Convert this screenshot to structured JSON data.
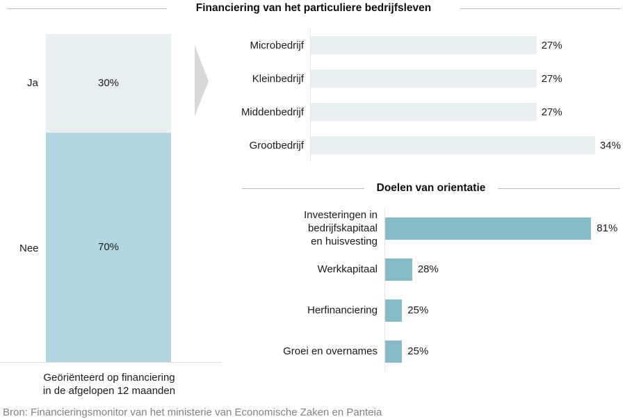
{
  "title": "Financiering van het particuliere bedrijfsleven",
  "source_note": "Bron: Financieringsmonitor van het ministerie van Economische Zaken en Panteia",
  "colors": {
    "light-bar": "#e7eff1",
    "blue-bar": "#b1d8e0",
    "teal-bar": "#84bbc6",
    "arrow": "#d8d8d8",
    "rule": "#bdbdbd",
    "axis": "#e5e5e5",
    "axis-strong": "#dcdcdc",
    "source-text": "#818181"
  },
  "chart_data": [
    {
      "type": "bar",
      "variant": "stacked-column",
      "categories": [
        "Ja",
        "Nee"
      ],
      "values": [
        30,
        70
      ],
      "value_labels": [
        "30%",
        "70%"
      ],
      "ylim": [
        0,
        100
      ],
      "caption_lines": [
        "Geöriënteerd op financiering",
        "in de afgelopen 12 maanden"
      ]
    },
    {
      "type": "bar",
      "variant": "horizontal",
      "categories": [
        "Microbedrijf",
        "Kleinbedrijf",
        "Middenbedrijf",
        "Grootbedrijf"
      ],
      "values": [
        27,
        27,
        27,
        34
      ],
      "value_labels": [
        "27%",
        "27%",
        "27%",
        "34%"
      ],
      "xlim": [
        0,
        37
      ]
    },
    {
      "type": "bar",
      "variant": "horizontal",
      "title": "Doelen van orientatie",
      "categories": [
        "Investeringen in bedrijfskapitaal en huisvesting",
        "Werkkapitaal",
        "Herfinanciering",
        "Groei en overnames"
      ],
      "category_lines": [
        [
          "Investeringen in bedrijfskapitaal",
          "en huisvesting"
        ],
        [
          "Werkkapitaal"
        ],
        [
          "Herfinanciering"
        ],
        [
          "Groei en overnames"
        ]
      ],
      "values": [
        81,
        28,
        25,
        25
      ],
      "value_labels": [
        "81%",
        "28%",
        "25%",
        "25%"
      ],
      "xlim": [
        20,
        90
      ]
    }
  ]
}
